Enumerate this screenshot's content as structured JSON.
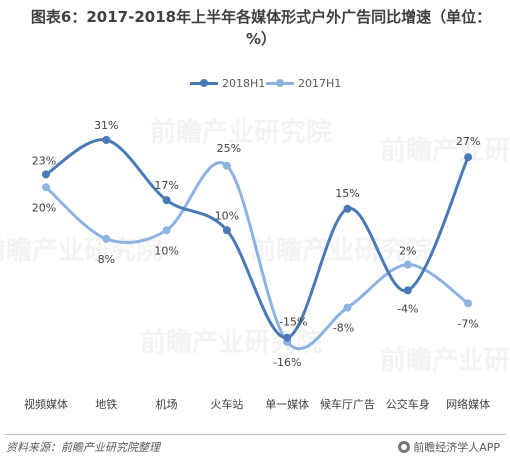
{
  "chart_data": {
    "type": "line",
    "title": "图表6：2017-2018年上半年各媒体形式户外广告同比增速（单位：%）",
    "categories": [
      "视频媒体",
      "地铁",
      "机场",
      "火车站",
      "单一媒体",
      "候车厅广告",
      "公交车身",
      "网络媒体"
    ],
    "series": [
      {
        "name": "2018H1",
        "color": "#4a7ab5",
        "values": [
          23,
          31,
          17,
          10,
          -15,
          15,
          -4,
          27
        ],
        "labels": [
          "23%",
          "31%",
          "17%",
          "10%",
          "-15%",
          "15%",
          "-4%",
          "27%"
        ]
      },
      {
        "name": "2017H1",
        "color": "#8db3e2",
        "values": [
          20,
          8,
          10,
          25,
          -16,
          -8,
          2,
          -7
        ],
        "labels": [
          "20%",
          "8%",
          "10%",
          "25%",
          "-16%",
          "-8%",
          "2%",
          "-7%"
        ]
      }
    ],
    "ylim": [
      -20,
      35
    ],
    "grid": false,
    "legend": "top",
    "xlabel": "",
    "ylabel": ""
  },
  "footer": {
    "source": "资料来源：前瞻产业研究院整理",
    "brand": "前瞻经济学人APP"
  },
  "watermark": "前瞻产业研究院"
}
